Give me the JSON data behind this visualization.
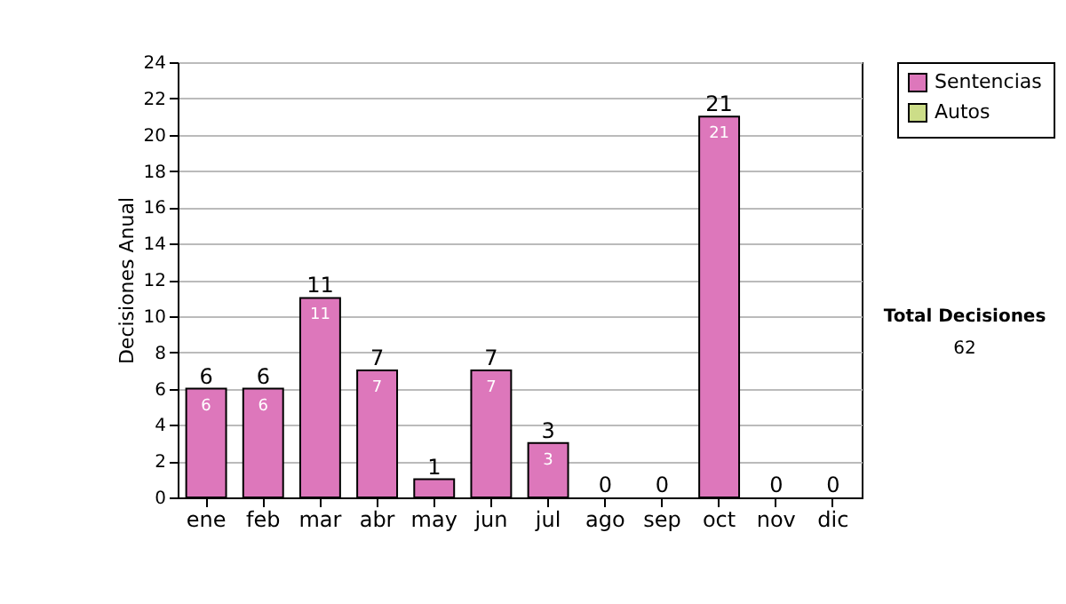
{
  "chart_data": {
    "type": "bar",
    "stacked": true,
    "ylabel": "Decisiones Anual",
    "categories": [
      "ene",
      "feb",
      "mar",
      "abr",
      "may",
      "jun",
      "jul",
      "ago",
      "sep",
      "oct",
      "nov",
      "dic"
    ],
    "series": [
      {
        "name": "Sentencias",
        "color": "#dd77bb",
        "values": [
          6,
          6,
          11,
          7,
          1,
          7,
          3,
          0,
          0,
          21,
          0,
          0
        ],
        "value_labels": [
          "6",
          "6",
          "11",
          "7",
          null,
          "7",
          "3",
          null,
          null,
          "21",
          null,
          null
        ]
      },
      {
        "name": "Autos",
        "color": "#ccdd88",
        "values": [
          0,
          0,
          0,
          0,
          0,
          0,
          0,
          0,
          0,
          0,
          0,
          0
        ]
      }
    ],
    "totals": [
      "6",
      "6",
      "11",
      "7",
      "1",
      "7",
      "3",
      "0",
      "0",
      "21",
      "0",
      "0"
    ],
    "ylim": [
      0,
      24
    ],
    "yticks": [
      0,
      2,
      4,
      6,
      8,
      10,
      12,
      14,
      16,
      18,
      20,
      22,
      24
    ],
    "grid": "y",
    "legend": "right",
    "annotations": [
      "Total Decisiones",
      "62"
    ]
  }
}
